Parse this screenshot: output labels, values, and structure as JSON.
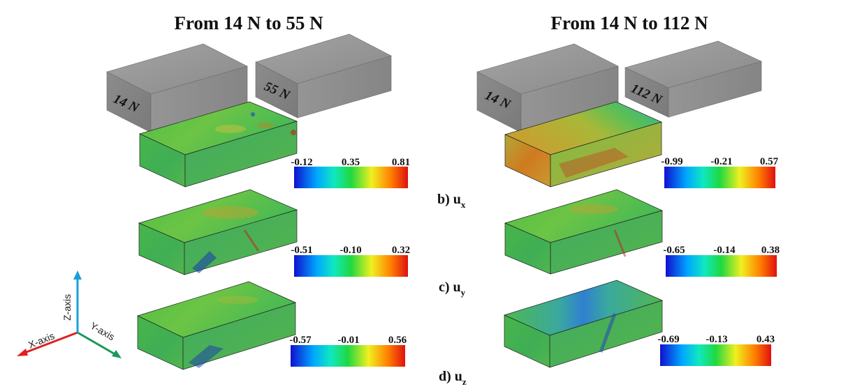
{
  "titles": {
    "left": "From 14 N to 55 N",
    "right": "From 14 N to 112 N"
  },
  "specimen_labels": {
    "left_a": "14 N",
    "left_b": "55 N",
    "right_a": "14 N",
    "right_b": "112 N"
  },
  "row_labels": [
    {
      "prefix": "b) u",
      "sub": "x"
    },
    {
      "prefix": "c) u",
      "sub": "y"
    },
    {
      "prefix": "d) u",
      "sub": "z"
    }
  ],
  "colorbars": {
    "left": [
      [
        "-0.12",
        "0.35",
        "0.81"
      ],
      [
        "-0.51",
        "-0.10",
        "0.32"
      ],
      [
        "-0.57",
        "-0.01",
        "0.56"
      ]
    ],
    "right": [
      [
        "-0.99",
        "-0.21",
        "0.57"
      ],
      [
        "-0.65",
        "-0.14",
        "0.38"
      ],
      [
        "-0.69",
        "-0.13",
        "0.43"
      ]
    ]
  },
  "axes": {
    "x": "X-axis",
    "y": "Y-axis",
    "z": "Z-axis",
    "colors": {
      "x": "#e02020",
      "y": "#1a9a5a",
      "z": "#1aa0d8"
    }
  },
  "palette": [
    "#1010d0",
    "#00a8ff",
    "#10e8c0",
    "#20d840",
    "#f0f020",
    "#ff8000",
    "#e01010"
  ]
}
